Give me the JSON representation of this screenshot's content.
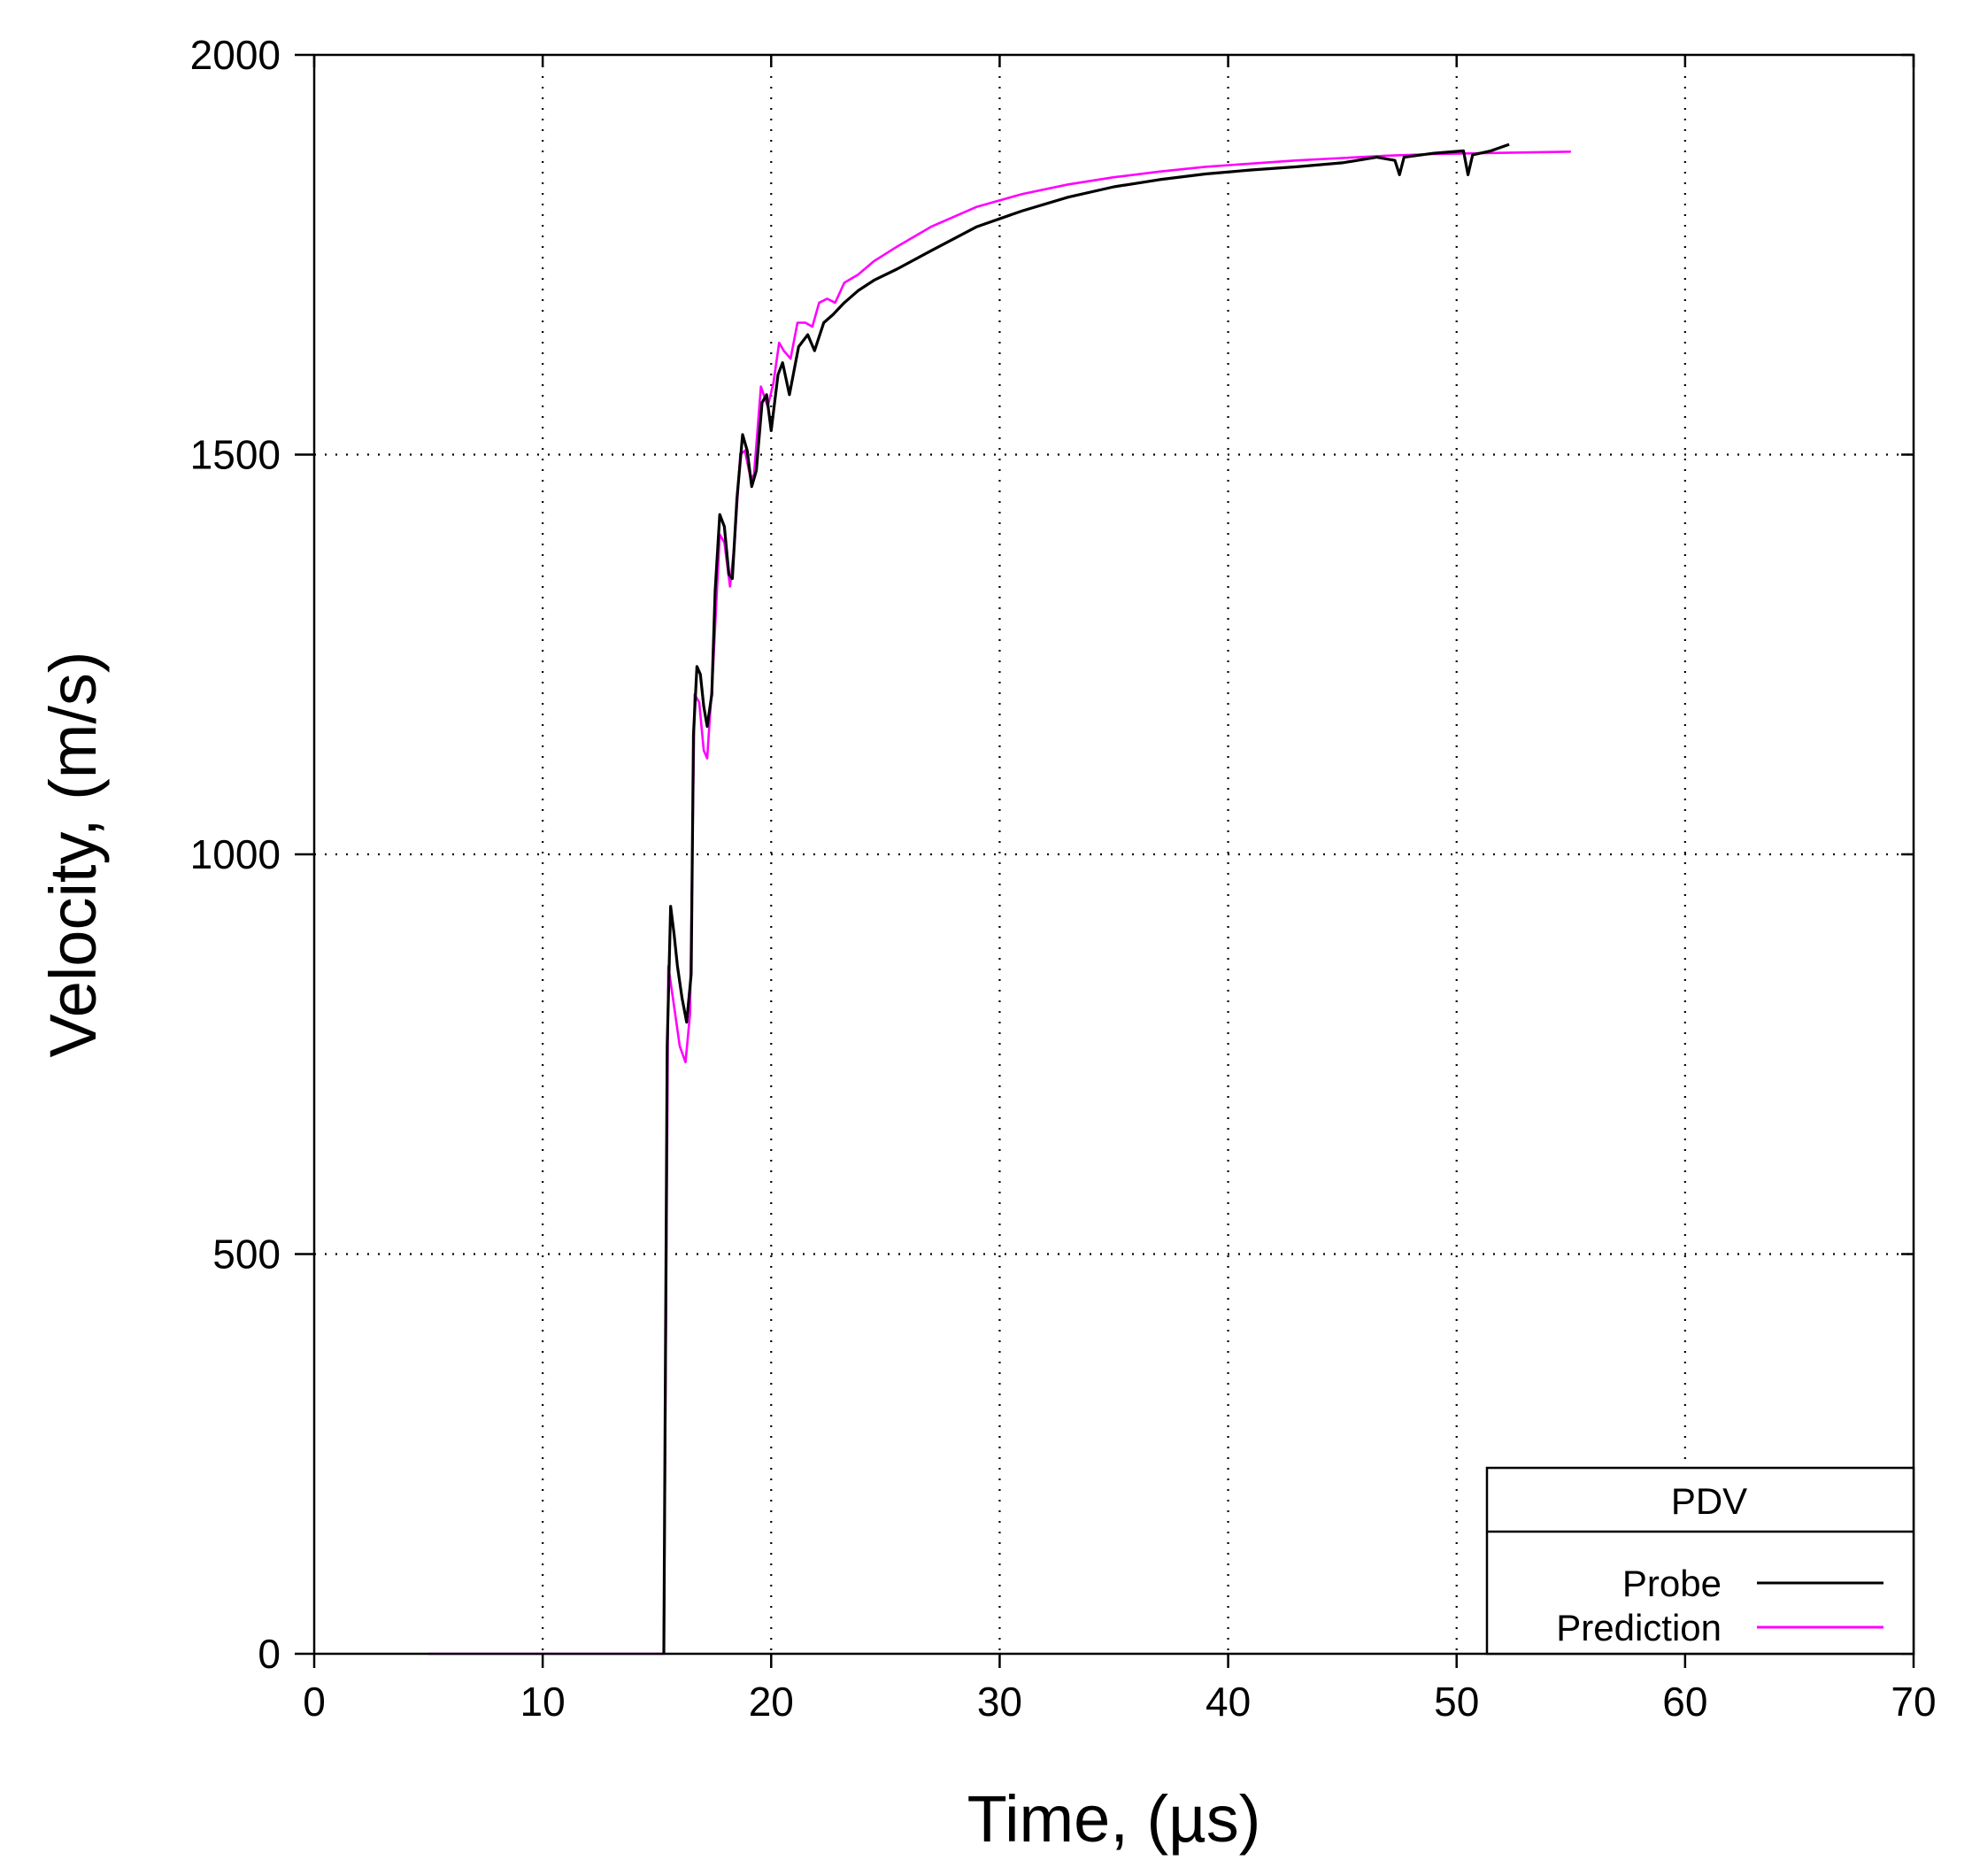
{
  "chart_data": {
    "type": "line",
    "title": "",
    "xlabel": "Time, (µs)",
    "ylabel": "Velocity, (m/s)",
    "xlim": [
      0,
      70
    ],
    "ylim": [
      0,
      2000
    ],
    "xticks": [
      0,
      10,
      20,
      30,
      40,
      50,
      60,
      70
    ],
    "yticks": [
      0,
      500,
      1000,
      1500,
      2000
    ],
    "grid": true,
    "legend": {
      "title": "PDV",
      "position": "bottom-right"
    },
    "series": [
      {
        "name": "Probe",
        "color": "#000000",
        "points": [
          [
            15.3,
            0
          ],
          [
            15.45,
            760
          ],
          [
            15.6,
            935
          ],
          [
            15.75,
            900
          ],
          [
            15.9,
            860
          ],
          [
            16.1,
            820
          ],
          [
            16.3,
            790
          ],
          [
            16.5,
            850
          ],
          [
            16.6,
            1150
          ],
          [
            16.75,
            1235
          ],
          [
            16.9,
            1225
          ],
          [
            17.05,
            1185
          ],
          [
            17.2,
            1160
          ],
          [
            17.4,
            1200
          ],
          [
            17.55,
            1330
          ],
          [
            17.75,
            1425
          ],
          [
            17.95,
            1410
          ],
          [
            18.15,
            1350
          ],
          [
            18.3,
            1345
          ],
          [
            18.5,
            1445
          ],
          [
            18.75,
            1525
          ],
          [
            18.95,
            1505
          ],
          [
            19.15,
            1460
          ],
          [
            19.35,
            1480
          ],
          [
            19.6,
            1565
          ],
          [
            19.8,
            1575
          ],
          [
            20.0,
            1530
          ],
          [
            20.3,
            1600
          ],
          [
            20.5,
            1615
          ],
          [
            20.8,
            1575
          ],
          [
            21.2,
            1635
          ],
          [
            21.6,
            1650
          ],
          [
            21.9,
            1630
          ],
          [
            22.3,
            1665
          ],
          [
            22.7,
            1675
          ],
          [
            23.2,
            1690
          ],
          [
            23.8,
            1705
          ],
          [
            24.5,
            1718
          ],
          [
            25.5,
            1732
          ],
          [
            27,
            1755
          ],
          [
            29,
            1785
          ],
          [
            31,
            1805
          ],
          [
            33,
            1822
          ],
          [
            35,
            1835
          ],
          [
            37,
            1844
          ],
          [
            39,
            1851
          ],
          [
            41,
            1856
          ],
          [
            43,
            1860
          ],
          [
            45,
            1865
          ],
          [
            46.5,
            1872
          ],
          [
            47.3,
            1868
          ],
          [
            47.5,
            1850
          ],
          [
            47.7,
            1872
          ],
          [
            49,
            1877
          ],
          [
            50.3,
            1880
          ],
          [
            50.5,
            1850
          ],
          [
            50.7,
            1875
          ],
          [
            51.5,
            1880
          ],
          [
            52.3,
            1888
          ]
        ]
      },
      {
        "name": "Prediction",
        "color": "#ff00ff",
        "points": [
          [
            5,
            0
          ],
          [
            15.3,
            0
          ],
          [
            15.5,
            860
          ],
          [
            15.7,
            820
          ],
          [
            16.0,
            760
          ],
          [
            16.25,
            740
          ],
          [
            16.45,
            800
          ],
          [
            16.65,
            1200
          ],
          [
            16.85,
            1190
          ],
          [
            17.05,
            1130
          ],
          [
            17.2,
            1120
          ],
          [
            17.45,
            1230
          ],
          [
            17.75,
            1400
          ],
          [
            17.95,
            1390
          ],
          [
            18.2,
            1335
          ],
          [
            18.4,
            1390
          ],
          [
            18.65,
            1500
          ],
          [
            18.85,
            1505
          ],
          [
            19.1,
            1470
          ],
          [
            19.25,
            1475
          ],
          [
            19.55,
            1585
          ],
          [
            19.85,
            1560
          ],
          [
            20.1,
            1590
          ],
          [
            20.35,
            1640
          ],
          [
            20.55,
            1630
          ],
          [
            20.85,
            1620
          ],
          [
            21.15,
            1665
          ],
          [
            21.5,
            1665
          ],
          [
            21.8,
            1660
          ],
          [
            22.1,
            1690
          ],
          [
            22.45,
            1695
          ],
          [
            22.8,
            1690
          ],
          [
            23.2,
            1715
          ],
          [
            23.8,
            1725
          ],
          [
            24.5,
            1742
          ],
          [
            25.5,
            1760
          ],
          [
            27,
            1785
          ],
          [
            29,
            1810
          ],
          [
            31,
            1826
          ],
          [
            33,
            1838
          ],
          [
            35,
            1847
          ],
          [
            37,
            1854
          ],
          [
            39,
            1860
          ],
          [
            41,
            1864
          ],
          [
            43,
            1868
          ],
          [
            45,
            1871
          ],
          [
            47,
            1874
          ],
          [
            49,
            1876
          ],
          [
            51,
            1877
          ],
          [
            53,
            1878
          ],
          [
            55,
            1879
          ]
        ]
      }
    ]
  }
}
